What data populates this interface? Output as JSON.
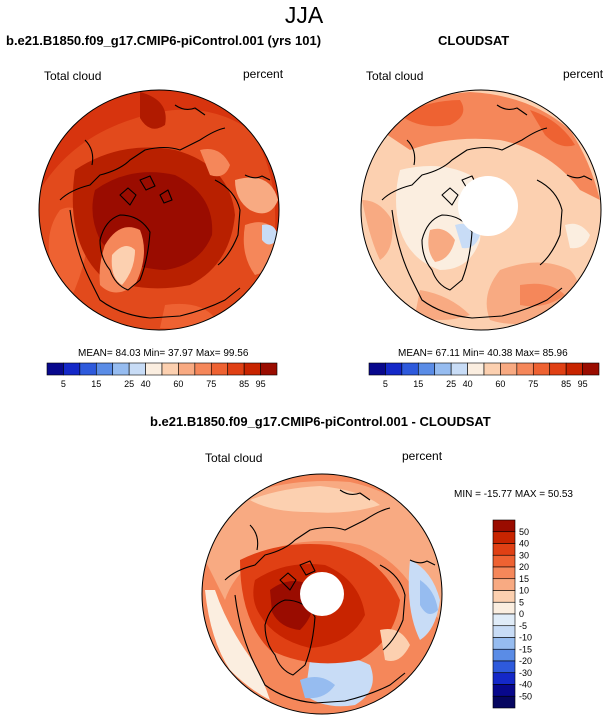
{
  "season": "JJA",
  "panels": {
    "model": {
      "title": "b.e21.B1850.f09_g17.CMIP6-piControl.001 (yrs 101)",
      "variable": "Total cloud",
      "units": "percent",
      "stats": "MEAN= 84.03  Min= 37.97  Max= 99.56"
    },
    "obs": {
      "title": "CLOUDSAT",
      "variable": "Total cloud",
      "units": "percent",
      "stats": "MEAN= 67.11  Min= 40.38  Max= 85.96"
    },
    "diff": {
      "title": "b.e21.B1850.f09_g17.CMIP6-piControl.001 - CLOUDSAT",
      "variable": "Total cloud",
      "units": "percent",
      "stats": "MIN = -15.77 MAX =  50.53"
    }
  },
  "colorbar_abs": {
    "labels": [
      "5",
      "15",
      "25",
      "40",
      "60",
      "75",
      "85",
      "95"
    ],
    "colors": [
      "#08088c",
      "#1428c8",
      "#2e5adc",
      "#5a8ce6",
      "#96bcf0",
      "#c8dcf6",
      "#fbeee0",
      "#fcd0b0",
      "#f8aa82",
      "#f5875a",
      "#ee6232",
      "#e04014",
      "#c82400",
      "#9a0c00"
    ]
  },
  "colorbar_diff": {
    "labels": [
      "50",
      "40",
      "30",
      "20",
      "15",
      "10",
      "5",
      "0",
      "-5",
      "-10",
      "-15",
      "-20",
      "-30",
      "-40",
      "-50"
    ],
    "colors": [
      "#9a0c00",
      "#c82400",
      "#e04014",
      "#ee6232",
      "#f5875a",
      "#f8aa82",
      "#fcd0b0",
      "#fbeee0",
      "#e0ecf8",
      "#c8dcf6",
      "#96bcf0",
      "#5a8ce6",
      "#2e5adc",
      "#1428c8",
      "#08088c",
      "#060660"
    ]
  }
}
